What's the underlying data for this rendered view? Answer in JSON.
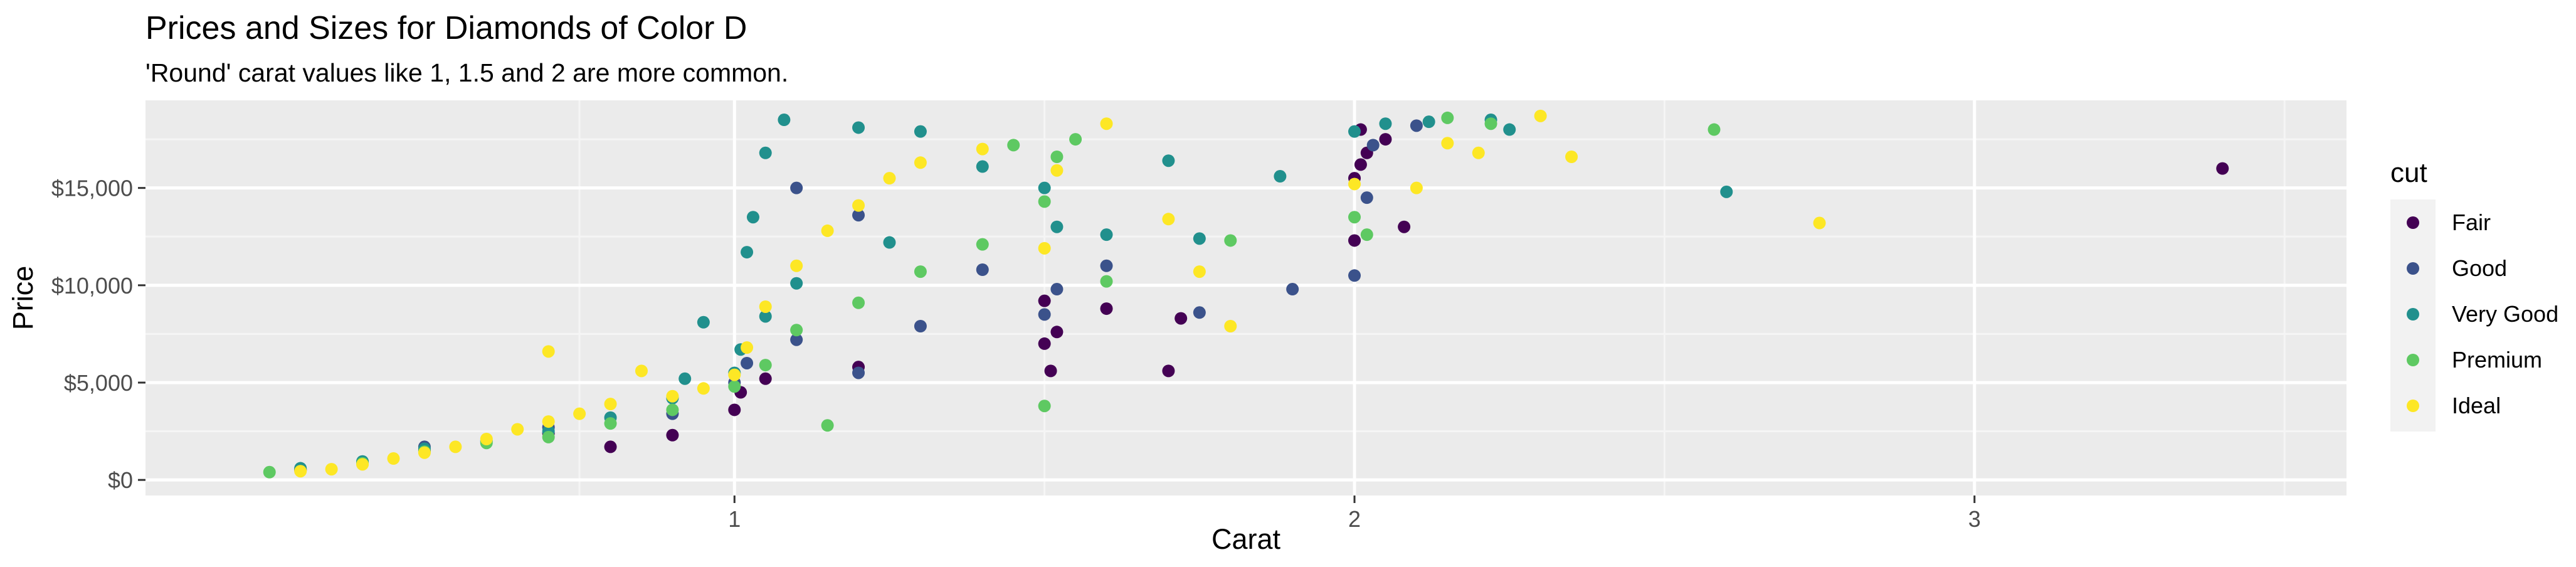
{
  "chart_data": {
    "type": "scatter",
    "title": "Prices and Sizes for Diamonds of Color D",
    "subtitle": "'Round' carat values like 1, 1.5 and 2 are more common.",
    "xlabel": "Carat",
    "ylabel": "Price",
    "xlim": [
      0.05,
      3.6
    ],
    "ylim": [
      -800,
      19500
    ],
    "x_ticks": [
      1,
      2,
      3
    ],
    "x_tick_labels": [
      "1",
      "2",
      "3"
    ],
    "y_ticks": [
      0,
      5000,
      10000,
      15000
    ],
    "y_tick_labels": [
      "$0",
      "$5,000",
      "$10,000",
      "$15,000"
    ],
    "grid": true,
    "legend_position": "right",
    "legend_title": "cut",
    "series": [
      {
        "name": "Fair",
        "color": "#440154",
        "points": [
          [
            0.3,
            500
          ],
          [
            0.5,
            1500
          ],
          [
            0.7,
            2400
          ],
          [
            0.8,
            1700
          ],
          [
            0.9,
            2300
          ],
          [
            1.0,
            3600
          ],
          [
            1.01,
            4500
          ],
          [
            1.05,
            5200
          ],
          [
            1.2,
            5800
          ],
          [
            1.5,
            7000
          ],
          [
            1.52,
            7600
          ],
          [
            1.51,
            5600
          ],
          [
            1.5,
            9200
          ],
          [
            1.7,
            5600
          ],
          [
            1.72,
            8300
          ],
          [
            1.6,
            8800
          ],
          [
            2.0,
            15500
          ],
          [
            2.01,
            16200
          ],
          [
            2.02,
            16800
          ],
          [
            2.05,
            17500
          ],
          [
            2.0,
            12300
          ],
          [
            2.08,
            13000
          ],
          [
            2.01,
            18000
          ],
          [
            3.4,
            16000
          ]
        ]
      },
      {
        "name": "Good",
        "color": "#3b528b",
        "points": [
          [
            0.3,
            550
          ],
          [
            0.4,
            900
          ],
          [
            0.5,
            1700
          ],
          [
            0.7,
            2700
          ],
          [
            0.9,
            3400
          ],
          [
            1.0,
            5000
          ],
          [
            1.02,
            6000
          ],
          [
            1.1,
            7200
          ],
          [
            1.2,
            5500
          ],
          [
            1.3,
            7900
          ],
          [
            1.5,
            8500
          ],
          [
            1.52,
            9800
          ],
          [
            1.6,
            11000
          ],
          [
            1.75,
            8600
          ],
          [
            1.9,
            9800
          ],
          [
            2.0,
            10500
          ],
          [
            2.02,
            14500
          ],
          [
            2.03,
            17200
          ],
          [
            2.1,
            18200
          ],
          [
            1.2,
            13600
          ],
          [
            1.1,
            15000
          ],
          [
            1.4,
            10800
          ]
        ]
      },
      {
        "name": "Very Good",
        "color": "#21908d",
        "points": [
          [
            0.3,
            600
          ],
          [
            0.4,
            950
          ],
          [
            0.5,
            1600
          ],
          [
            0.6,
            2000
          ],
          [
            0.7,
            2500
          ],
          [
            0.8,
            3200
          ],
          [
            0.9,
            4200
          ],
          [
            0.92,
            5200
          ],
          [
            1.0,
            5500
          ],
          [
            1.01,
            6700
          ],
          [
            1.05,
            8400
          ],
          [
            1.1,
            10100
          ],
          [
            1.02,
            11700
          ],
          [
            1.03,
            13500
          ],
          [
            1.05,
            16800
          ],
          [
            1.08,
            18500
          ],
          [
            1.2,
            18100
          ],
          [
            1.3,
            17900
          ],
          [
            1.5,
            15000
          ],
          [
            1.52,
            13000
          ],
          [
            1.6,
            12600
          ],
          [
            1.7,
            16400
          ],
          [
            1.75,
            12400
          ],
          [
            1.88,
            15600
          ],
          [
            2.0,
            17900
          ],
          [
            2.05,
            18300
          ],
          [
            2.12,
            18400
          ],
          [
            2.22,
            18500
          ],
          [
            2.25,
            18000
          ],
          [
            2.6,
            14800
          ],
          [
            1.4,
            16100
          ],
          [
            1.25,
            12200
          ],
          [
            0.95,
            8100
          ]
        ]
      },
      {
        "name": "Premium",
        "color": "#5ec962",
        "points": [
          [
            0.25,
            400
          ],
          [
            0.4,
            850
          ],
          [
            0.5,
            1450
          ],
          [
            0.6,
            1900
          ],
          [
            0.7,
            2200
          ],
          [
            0.8,
            2900
          ],
          [
            0.9,
            3600
          ],
          [
            1.0,
            4800
          ],
          [
            1.05,
            5900
          ],
          [
            1.1,
            7700
          ],
          [
            1.2,
            9100
          ],
          [
            1.3,
            10700
          ],
          [
            1.4,
            12100
          ],
          [
            1.5,
            14300
          ],
          [
            1.5,
            3800
          ],
          [
            1.52,
            16600
          ],
          [
            1.55,
            17500
          ],
          [
            1.6,
            10200
          ],
          [
            1.8,
            12300
          ],
          [
            2.0,
            13500
          ],
          [
            2.02,
            12600
          ],
          [
            2.15,
            18600
          ],
          [
            2.22,
            18300
          ],
          [
            2.58,
            18000
          ],
          [
            1.15,
            2800
          ],
          [
            1.45,
            17200
          ]
        ]
      },
      {
        "name": "Ideal",
        "color": "#fde725",
        "points": [
          [
            0.3,
            450
          ],
          [
            0.35,
            550
          ],
          [
            0.4,
            800
          ],
          [
            0.45,
            1100
          ],
          [
            0.5,
            1400
          ],
          [
            0.55,
            1700
          ],
          [
            0.6,
            2100
          ],
          [
            0.65,
            2600
          ],
          [
            0.7,
            3000
          ],
          [
            0.75,
            3400
          ],
          [
            0.8,
            3900
          ],
          [
            0.9,
            4300
          ],
          [
            0.95,
            4700
          ],
          [
            1.0,
            5400
          ],
          [
            1.02,
            6800
          ],
          [
            1.05,
            8900
          ],
          [
            1.1,
            11000
          ],
          [
            1.15,
            12800
          ],
          [
            1.2,
            14100
          ],
          [
            1.25,
            15500
          ],
          [
            1.3,
            16300
          ],
          [
            1.4,
            17000
          ],
          [
            1.5,
            11900
          ],
          [
            1.52,
            15900
          ],
          [
            1.6,
            18300
          ],
          [
            1.7,
            13400
          ],
          [
            1.75,
            10700
          ],
          [
            1.8,
            7900
          ],
          [
            2.0,
            15200
          ],
          [
            2.1,
            15000
          ],
          [
            2.15,
            17300
          ],
          [
            2.2,
            16800
          ],
          [
            2.3,
            18700
          ],
          [
            2.35,
            16600
          ],
          [
            2.75,
            13200
          ],
          [
            0.7,
            6600
          ],
          [
            0.85,
            5600
          ]
        ]
      }
    ]
  }
}
